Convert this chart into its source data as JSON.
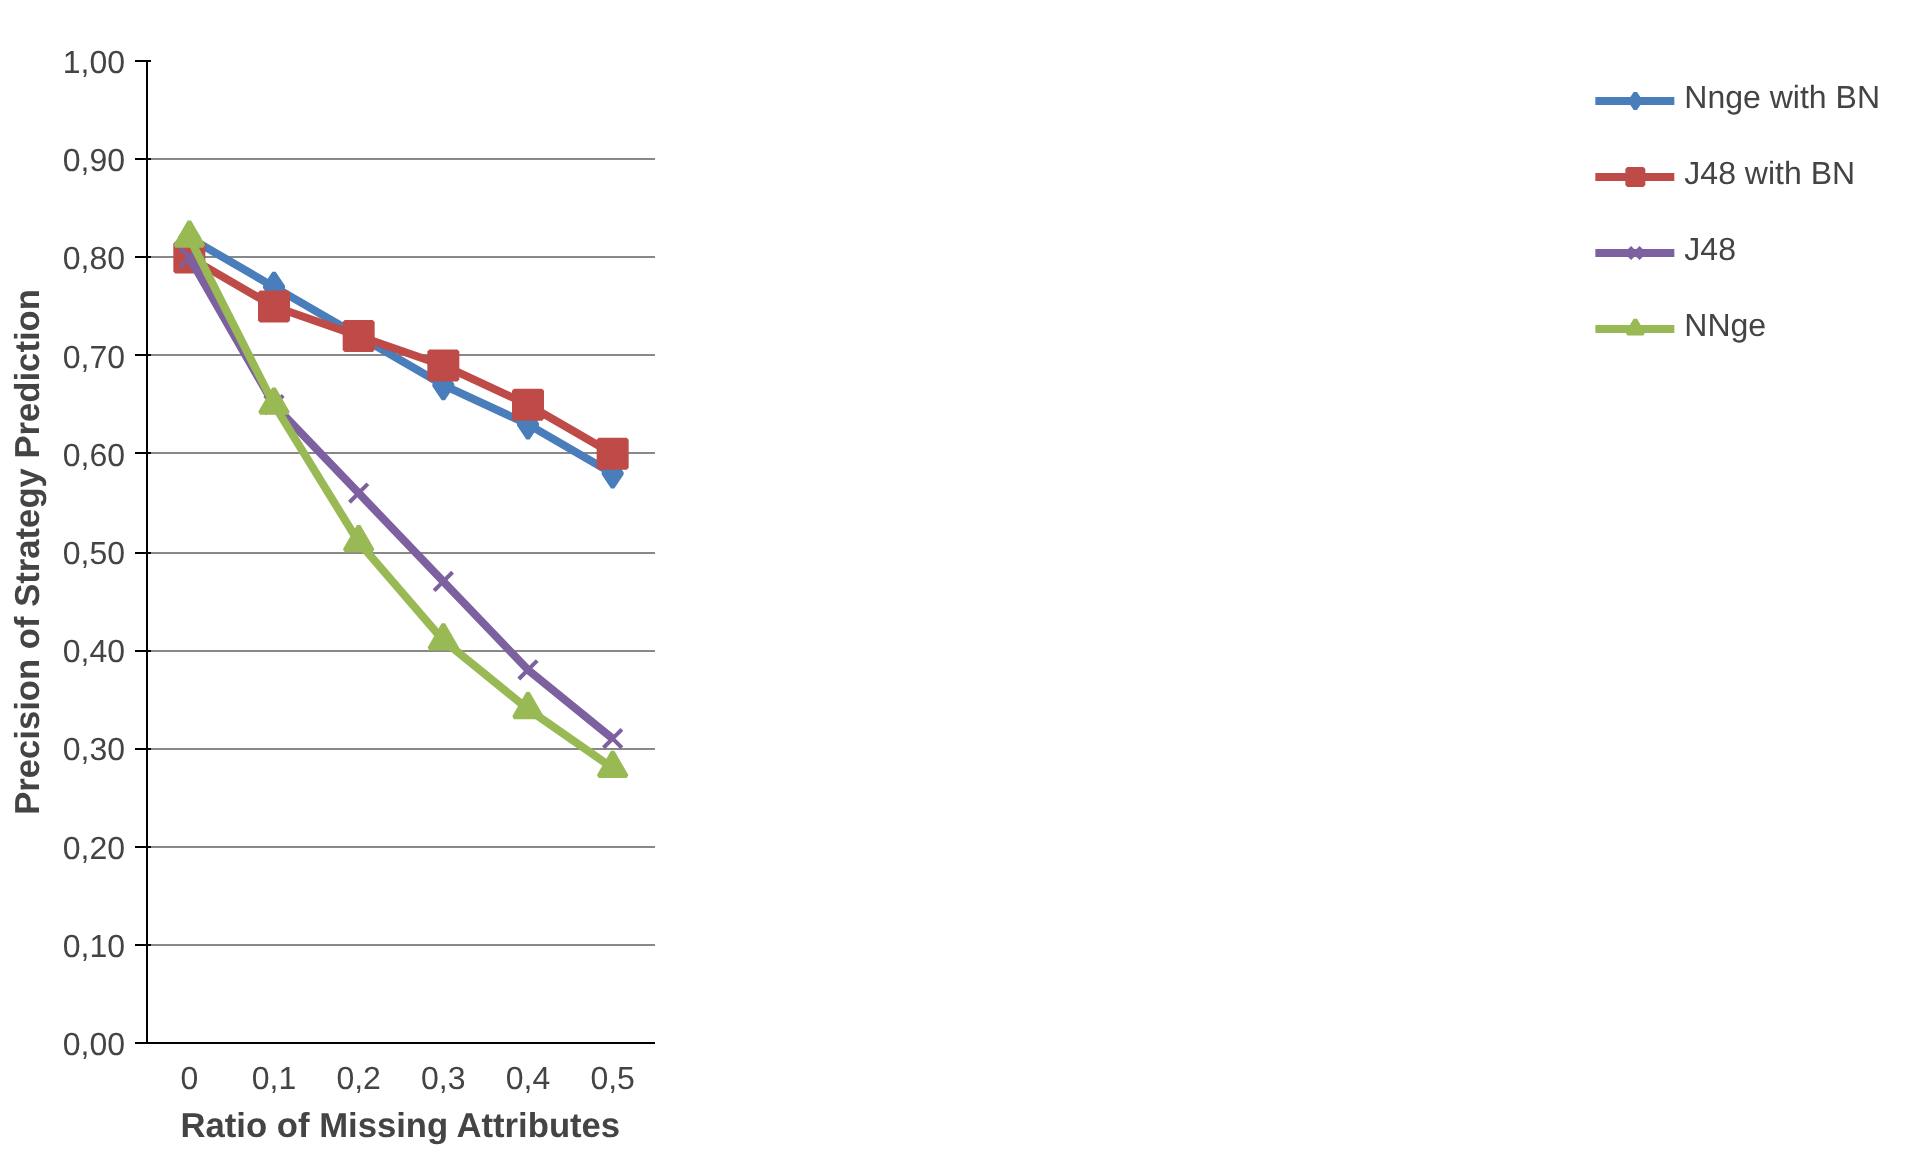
{
  "chart_data": {
    "type": "line",
    "xlabel": "Ratio of Missing Attributes",
    "ylabel": "Precision of Strategy Prediction",
    "categories": [
      "0",
      "0,1",
      "0,2",
      "0,3",
      "0,4",
      "0,5"
    ],
    "series": [
      {
        "name": "Nnge with BN",
        "color": "#4a7ebb",
        "marker": "diamond",
        "values": [
          0.82,
          0.77,
          0.72,
          0.67,
          0.63,
          0.58
        ]
      },
      {
        "name": "J48 with BN",
        "color": "#be4b48",
        "marker": "square",
        "values": [
          0.8,
          0.75,
          0.72,
          0.69,
          0.65,
          0.6
        ]
      },
      {
        "name": "J48",
        "color": "#7d60a0",
        "marker": "cross",
        "values": [
          0.8,
          0.65,
          0.56,
          0.47,
          0.38,
          0.31
        ]
      },
      {
        "name": "NNge",
        "color": "#98b954",
        "marker": "triangle",
        "values": [
          0.82,
          0.65,
          0.51,
          0.41,
          0.34,
          0.28
        ]
      }
    ],
    "ylim": [
      0,
      1
    ],
    "yticks": [
      {
        "value": 0,
        "label": "0,00"
      },
      {
        "value": 0.1,
        "label": "0,10"
      },
      {
        "value": 0.2,
        "label": "0,20"
      },
      {
        "value": 0.3,
        "label": "0,30"
      },
      {
        "value": 0.4,
        "label": "0,40"
      },
      {
        "value": 0.5,
        "label": "0,50"
      },
      {
        "value": 0.6,
        "label": "0,60"
      },
      {
        "value": 0.7,
        "label": "0,70"
      },
      {
        "value": 0.8,
        "label": "0,80"
      },
      {
        "value": 0.9,
        "label": "0,90"
      },
      {
        "value": 1,
        "label": "1,00"
      }
    ],
    "grid": "y",
    "legend": "right"
  }
}
